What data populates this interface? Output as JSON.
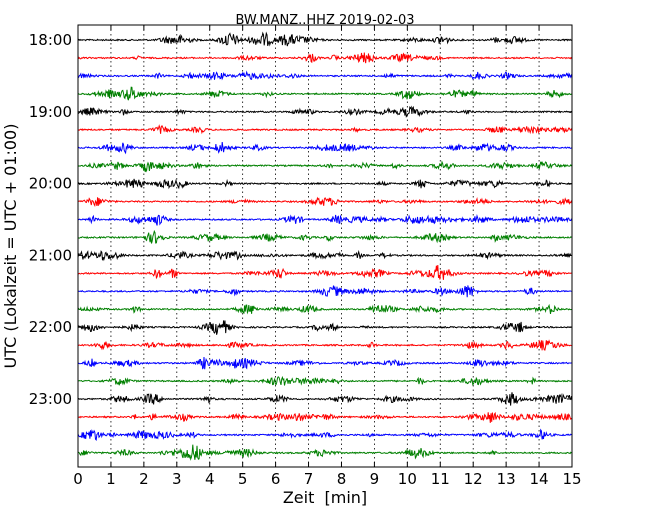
{
  "chart_data": {
    "type": "line",
    "title": "BW.MANZ..HHZ 2019-02-03",
    "xlabel": "Zeit  [min]",
    "ylabel": "UTC (Lokalzeit = UTC + 01:00)",
    "xlim": [
      0,
      15
    ],
    "x_ticks": [
      0,
      1,
      2,
      3,
      4,
      5,
      6,
      7,
      8,
      9,
      10,
      11,
      12,
      13,
      14,
      15
    ],
    "y_tick_labels": [
      "18:00",
      "19:00",
      "20:00",
      "21:00",
      "22:00",
      "23:00"
    ],
    "line_start_times": [
      "18:00",
      "18:15",
      "18:30",
      "18:45",
      "19:00",
      "19:15",
      "19:30",
      "19:45",
      "20:00",
      "20:15",
      "20:30",
      "20:45",
      "21:00",
      "21:15",
      "21:30",
      "21:45",
      "22:00",
      "22:15",
      "22:30",
      "22:45",
      "23:00",
      "23:15",
      "23:30",
      "23:45"
    ],
    "trace_colors": [
      "#000000",
      "#ff0000",
      "#0000ff",
      "#008000"
    ],
    "grid": "vertical dotted lines at each minute",
    "trace_count": 24,
    "minutes_per_trace": 15
  }
}
